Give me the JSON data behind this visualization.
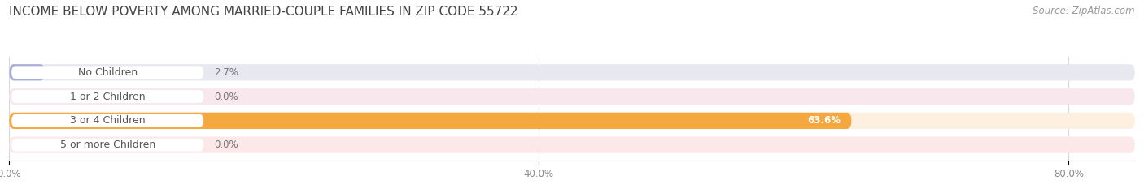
{
  "title": "INCOME BELOW POVERTY AMONG MARRIED-COUPLE FAMILIES IN ZIP CODE 55722",
  "source": "Source: ZipAtlas.com",
  "categories": [
    "No Children",
    "1 or 2 Children",
    "3 or 4 Children",
    "5 or more Children"
  ],
  "values": [
    2.7,
    0.0,
    63.6,
    0.0
  ],
  "bar_colors": [
    "#a8aed8",
    "#f07898",
    "#f5a840",
    "#f09898"
  ],
  "bar_bg_colors": [
    "#e8e8f0",
    "#f8e8ee",
    "#fdf0e0",
    "#fce8e8"
  ],
  "small_bar_colors": [
    "#a8aed8",
    "#f07898",
    "#f09898"
  ],
  "xlim_max": 85,
  "xtick_positions": [
    0,
    40,
    80
  ],
  "xtick_labels": [
    "0.0%",
    "40.0%",
    "80.0%"
  ],
  "title_fontsize": 11,
  "source_fontsize": 8.5,
  "label_fontsize": 9,
  "bar_label_fontsize": 8.5,
  "tick_fontsize": 8.5,
  "background_color": "#ffffff",
  "bar_height": 0.68,
  "label_pill_color": "#ffffff",
  "label_text_color": "#555555",
  "value_label_color_inside": "#ffffff",
  "value_label_color_outside": "#777777",
  "grid_color": "#d8d8d8",
  "spine_color": "#d8d8d8"
}
